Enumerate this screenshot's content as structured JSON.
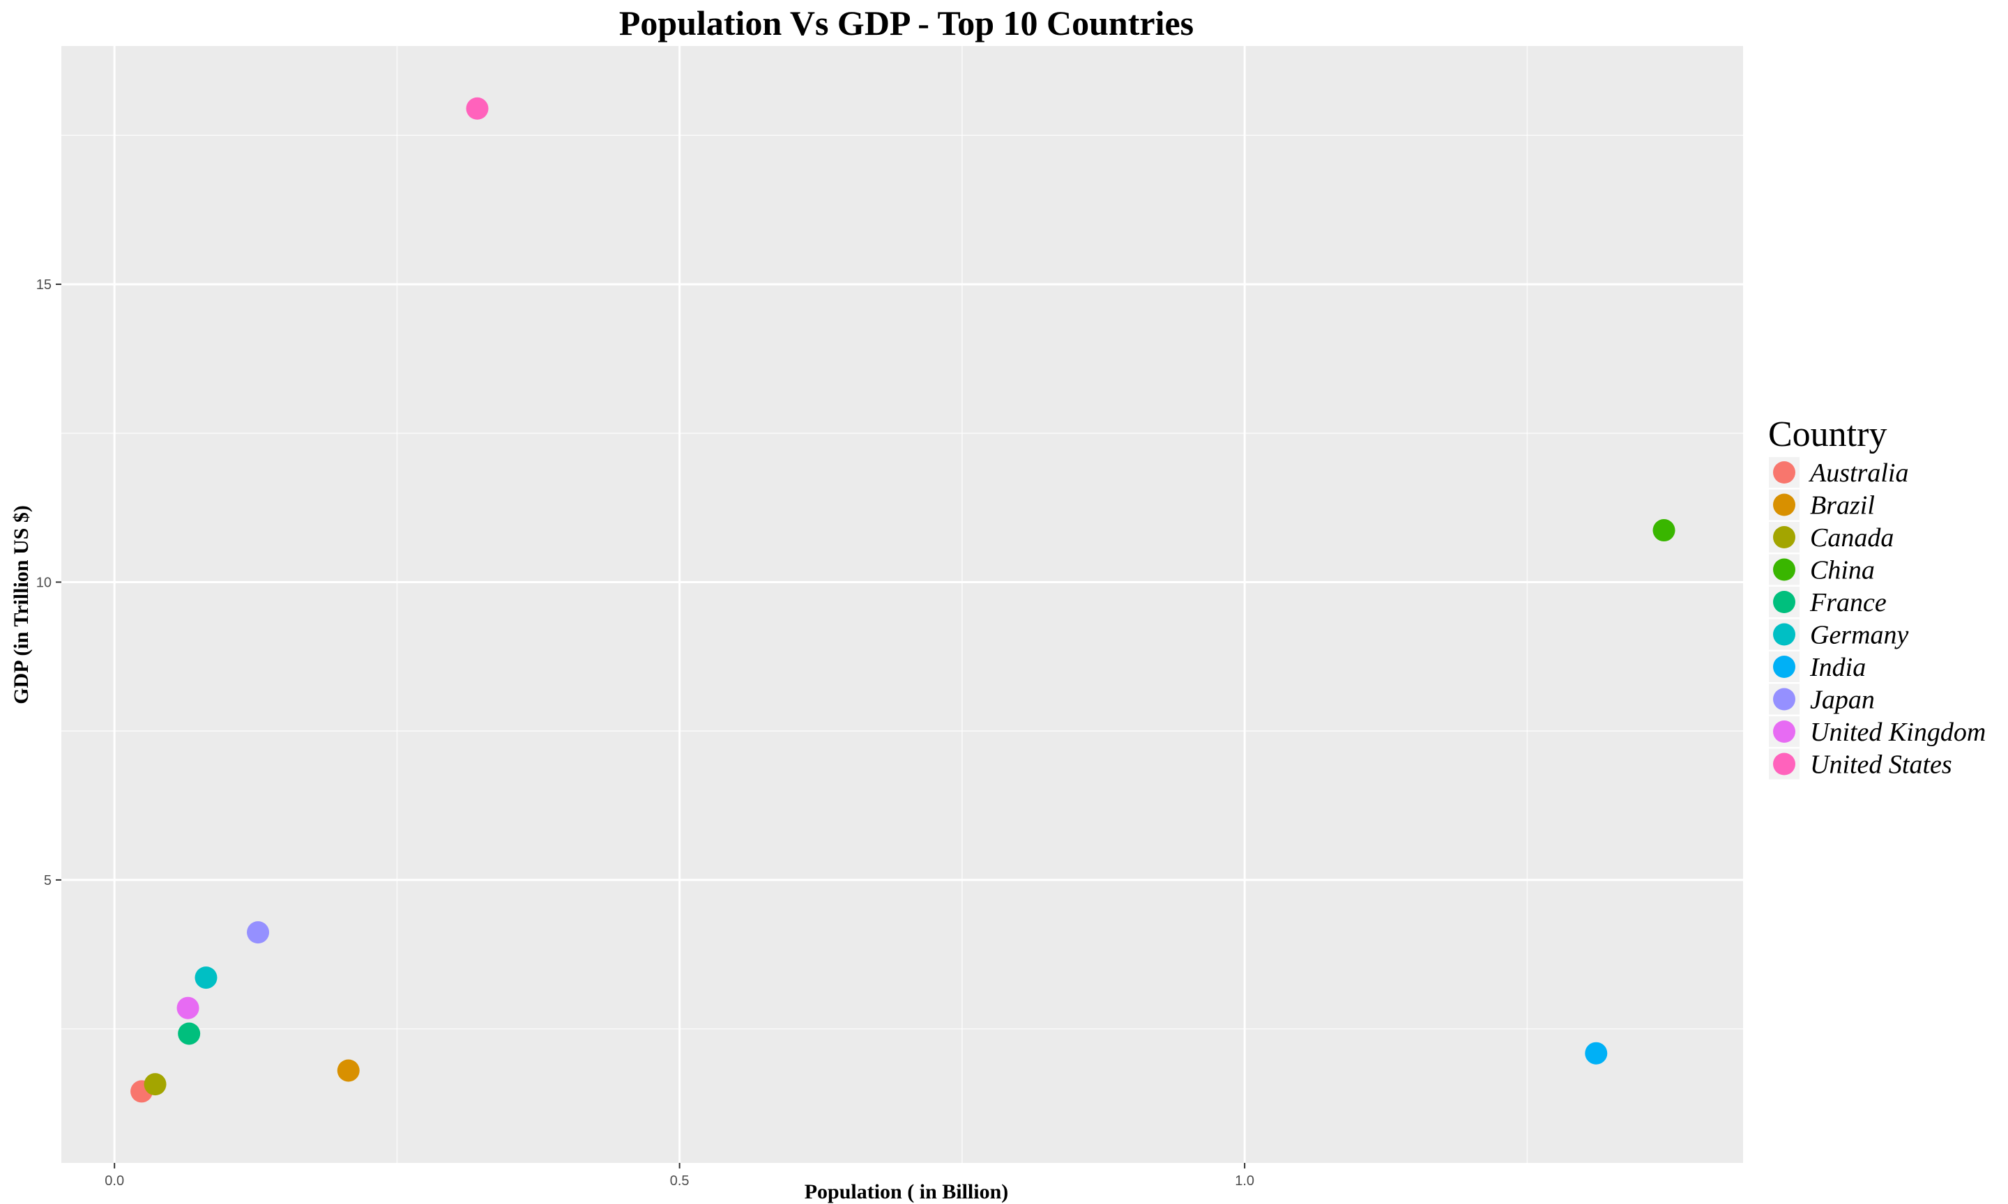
{
  "chart_data": {
    "type": "scatter",
    "title": "Population Vs GDP - Top 10 Countries",
    "xlabel": "Population ( in Billion)",
    "ylabel": "GDP (in Trillion US $)",
    "xlim": [
      -0.047,
      1.441
    ],
    "ylim": [
      0.25,
      19.0
    ],
    "x_ticks": [
      0.0,
      0.5,
      1.0
    ],
    "x_tick_labels": [
      "0.0",
      "0.5",
      "1.0"
    ],
    "y_ticks": [
      5,
      10,
      15
    ],
    "y_tick_labels": [
      "5",
      "10",
      "15"
    ],
    "x_minor_ticks": [
      0.25,
      0.75,
      1.25
    ],
    "y_minor_ticks": [
      2.5,
      7.5,
      12.5,
      17.5
    ],
    "grid": true,
    "panel_background": "#ebebeb",
    "grid_color": "#ffffff",
    "legend": {
      "title": "Country",
      "position": "right"
    },
    "series": [
      {
        "name": "Australia",
        "color": "#F8766D",
        "x": 0.024,
        "y": 1.45
      },
      {
        "name": "Brazil",
        "color": "#D89000",
        "x": 0.207,
        "y": 1.8
      },
      {
        "name": "Canada",
        "color": "#A3A500",
        "x": 0.036,
        "y": 1.57
      },
      {
        "name": "China",
        "color": "#39B600",
        "x": 1.371,
        "y": 10.87
      },
      {
        "name": "France",
        "color": "#00BF7D",
        "x": 0.066,
        "y": 2.42
      },
      {
        "name": "Germany",
        "color": "#00BFC4",
        "x": 0.081,
        "y": 3.36
      },
      {
        "name": "India",
        "color": "#00B0F6",
        "x": 1.311,
        "y": 2.09
      },
      {
        "name": "Japan",
        "color": "#9590FF",
        "x": 0.127,
        "y": 4.12
      },
      {
        "name": "United Kingdom",
        "color": "#E76BF3",
        "x": 0.065,
        "y": 2.85
      },
      {
        "name": "United States",
        "color": "#FF62BC",
        "x": 0.321,
        "y": 17.95
      }
    ]
  }
}
